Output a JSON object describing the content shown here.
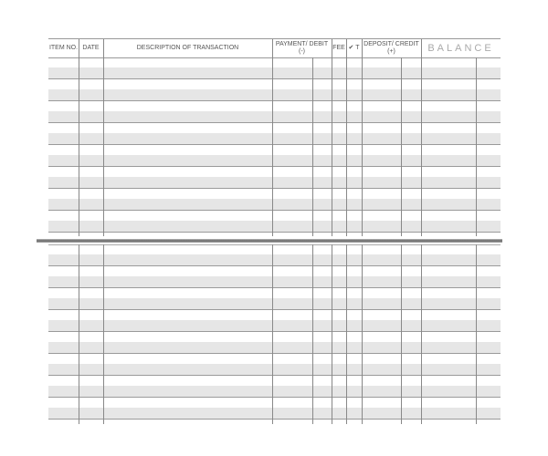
{
  "register": {
    "headers": {
      "item_no": "ITEM NO.",
      "date": "DATE",
      "description": "DESCRIPTION OF TRANSACTION",
      "payment_debit": "PAYMENT/ DEBIT (-)",
      "fee": "FEE",
      "check_mark": "✔ T",
      "deposit_credit": "DEPOSIT/ CREDIT (+)",
      "balance": "BALANCE"
    },
    "rows": []
  }
}
